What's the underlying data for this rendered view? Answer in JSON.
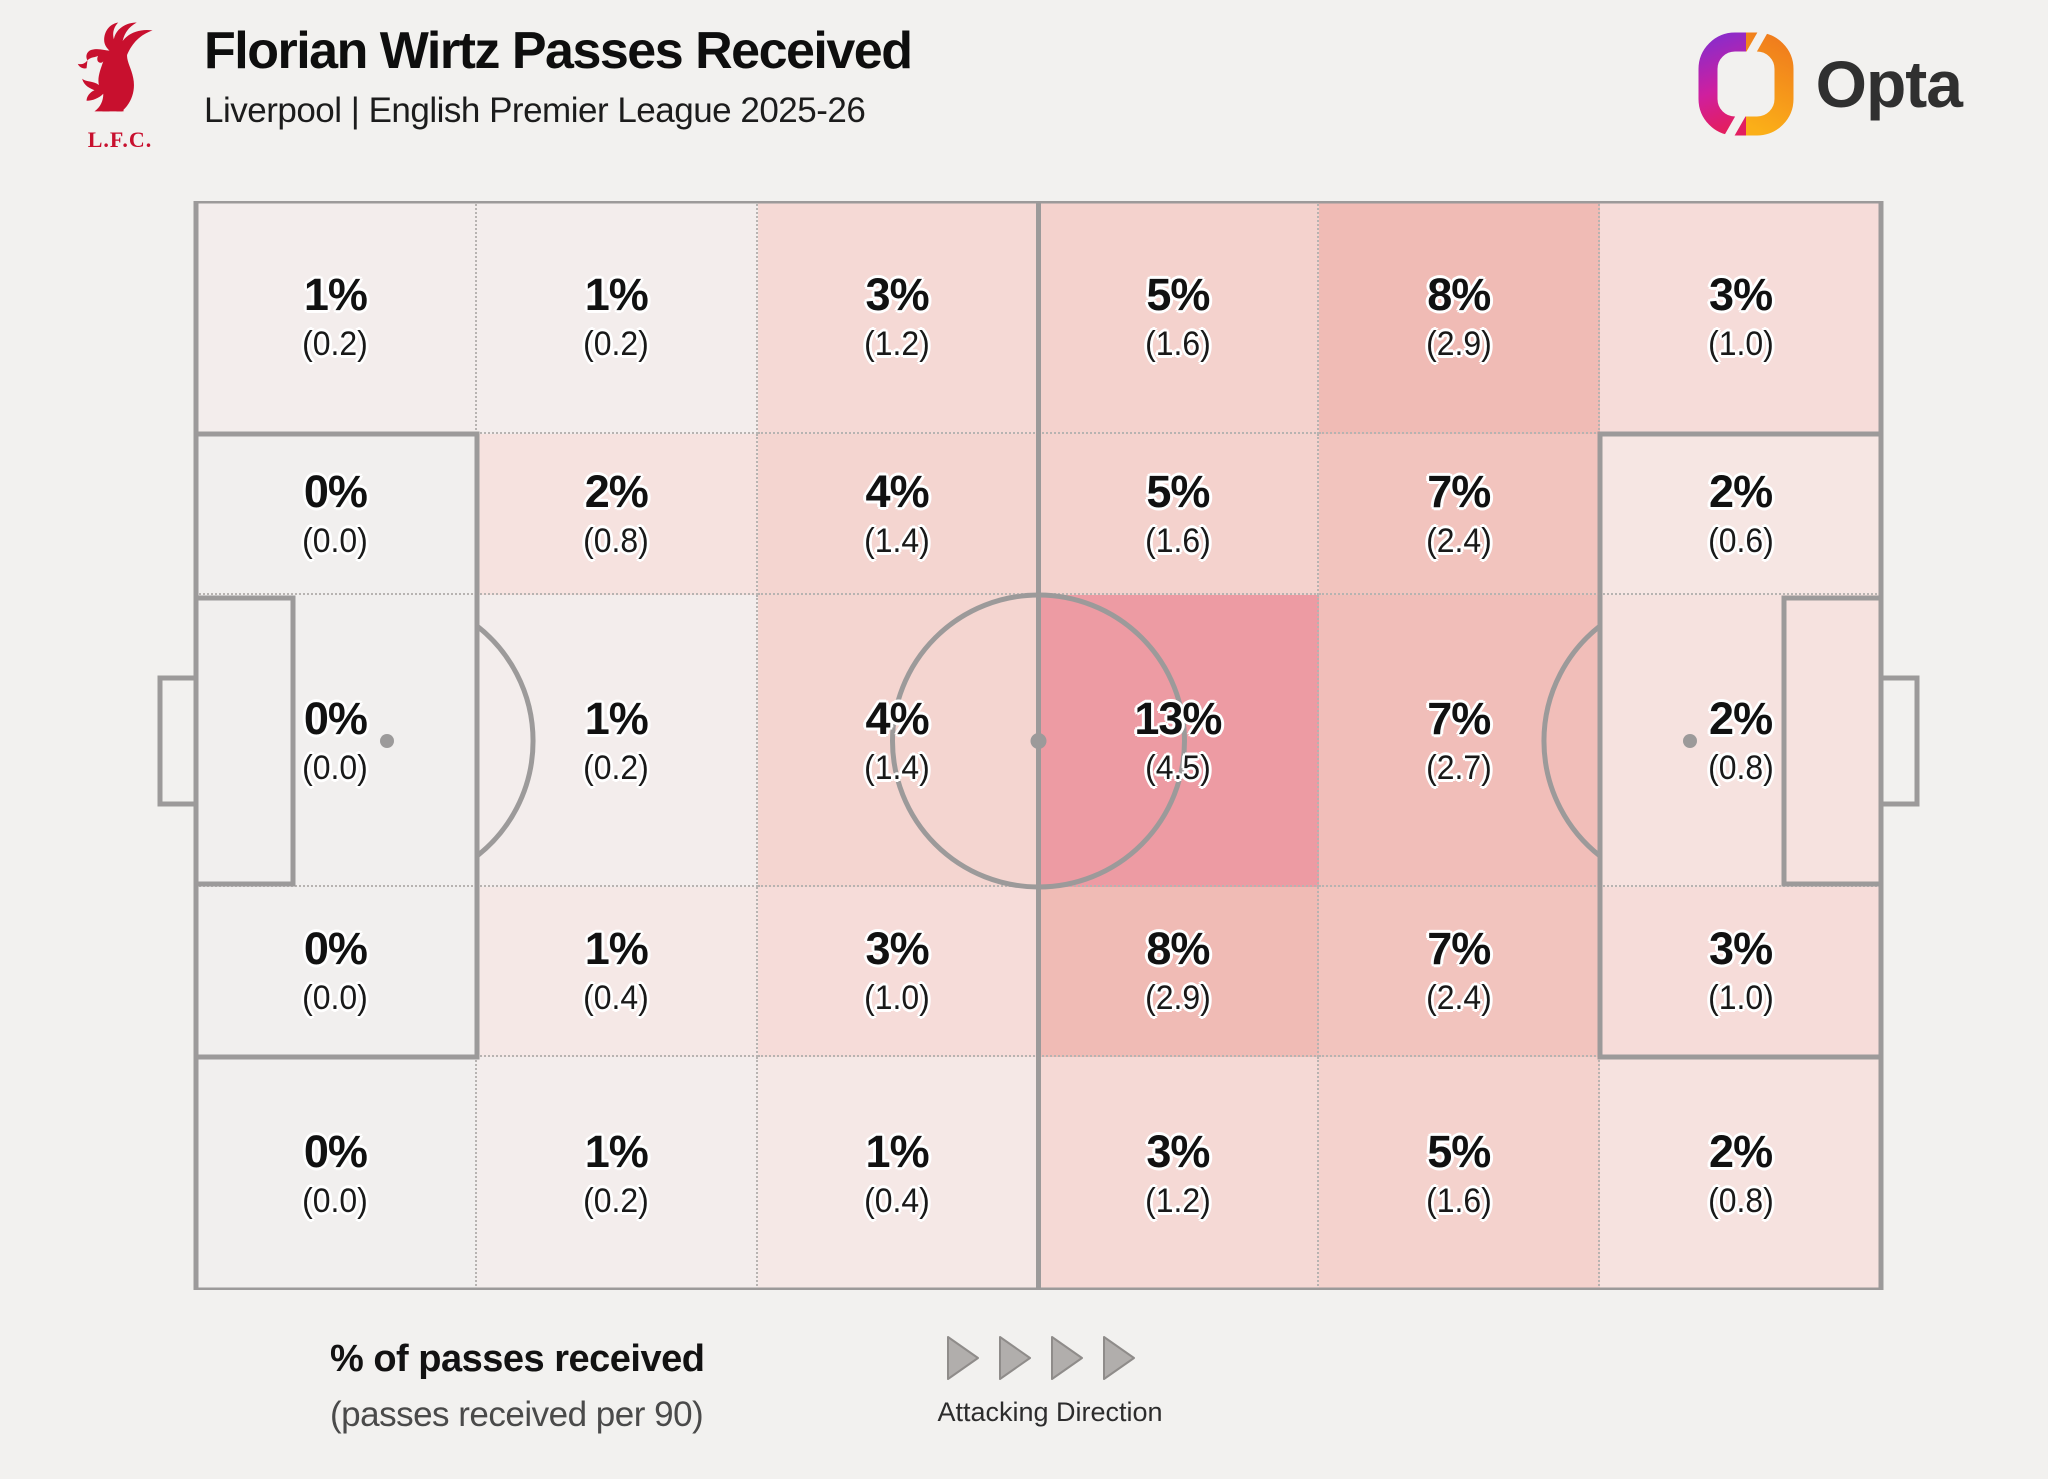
{
  "header": {
    "title": "Florian Wirtz Passes Received",
    "subtitle": "Liverpool | English Premier League 2025-26",
    "club_badge_label": "L.F.C.",
    "brand": "Opta"
  },
  "legend": {
    "primary": "% of passes received",
    "secondary": "(passes received per 90)",
    "attacking_direction": "Attacking Direction"
  },
  "colors": {
    "background": "#f2f1ef",
    "pitch_line": "#9c9a9a",
    "grid_dotted": "#b7b3b1",
    "max_zone": "#ed9ba3",
    "lfc_red": "#c8102e",
    "text": "#111111"
  },
  "chart_data": {
    "type": "heatmap",
    "title": "Florian Wirtz Passes Received",
    "subtitle": "Liverpool | English Premier League 2025-26",
    "unit_primary": "% of passes received",
    "unit_secondary": "passes received per 90",
    "orientation": "attacking left to right",
    "rows": 5,
    "cols": 6,
    "row_boundaries_fraction": [
      0,
      0.214,
      0.362,
      0.63,
      0.786,
      1
    ],
    "cells": [
      [
        {
          "label": "1%",
          "sub": "(0.2)",
          "value": 1,
          "per90": 0.2,
          "color": "#f3edec"
        },
        {
          "label": "1%",
          "sub": "(0.2)",
          "value": 1,
          "per90": 0.2,
          "color": "#f3edec"
        },
        {
          "label": "3%",
          "sub": "(1.2)",
          "value": 3,
          "per90": 1.2,
          "color": "#f5d9d5"
        },
        {
          "label": "5%",
          "sub": "(1.6)",
          "value": 5,
          "per90": 1.6,
          "color": "#f4d2cd"
        },
        {
          "label": "8%",
          "sub": "(2.9)",
          "value": 8,
          "per90": 2.9,
          "color": "#f0bbb5"
        },
        {
          "label": "3%",
          "sub": "(1.0)",
          "value": 3,
          "per90": 1.0,
          "color": "#f6dcd9"
        }
      ],
      [
        {
          "label": "0%",
          "sub": "(0.0)",
          "value": 0,
          "per90": 0.0,
          "color": "#f1efee"
        },
        {
          "label": "2%",
          "sub": "(0.8)",
          "value": 2,
          "per90": 0.8,
          "color": "#f6e2df"
        },
        {
          "label": "4%",
          "sub": "(1.4)",
          "value": 4,
          "per90": 1.4,
          "color": "#f4d5d0"
        },
        {
          "label": "5%",
          "sub": "(1.6)",
          "value": 5,
          "per90": 1.6,
          "color": "#f4d2cd"
        },
        {
          "label": "7%",
          "sub": "(2.4)",
          "value": 7,
          "per90": 2.4,
          "color": "#f2c4be"
        },
        {
          "label": "2%",
          "sub": "(0.6)",
          "value": 2,
          "per90": 0.6,
          "color": "#f6e6e3"
        }
      ],
      [
        {
          "label": "0%",
          "sub": "(0.0)",
          "value": 0,
          "per90": 0.0,
          "color": "#f1efee"
        },
        {
          "label": "1%",
          "sub": "(0.2)",
          "value": 1,
          "per90": 0.2,
          "color": "#f3edec"
        },
        {
          "label": "4%",
          "sub": "(1.4)",
          "value": 4,
          "per90": 1.4,
          "color": "#f4d5d0"
        },
        {
          "label": "13%",
          "sub": "(4.5)",
          "value": 13,
          "per90": 4.5,
          "color": "#ed9ba3"
        },
        {
          "label": "7%",
          "sub": "(2.7)",
          "value": 7,
          "per90": 2.7,
          "color": "#f1beb9"
        },
        {
          "label": "2%",
          "sub": "(0.8)",
          "value": 2,
          "per90": 0.8,
          "color": "#f6e2df"
        }
      ],
      [
        {
          "label": "0%",
          "sub": "(0.0)",
          "value": 0,
          "per90": 0.0,
          "color": "#f1efee"
        },
        {
          "label": "1%",
          "sub": "(0.4)",
          "value": 1,
          "per90": 0.4,
          "color": "#f5e8e6"
        },
        {
          "label": "3%",
          "sub": "(1.0)",
          "value": 3,
          "per90": 1.0,
          "color": "#f6dcd9"
        },
        {
          "label": "8%",
          "sub": "(2.9)",
          "value": 8,
          "per90": 2.9,
          "color": "#f0bbb5"
        },
        {
          "label": "7%",
          "sub": "(2.4)",
          "value": 7,
          "per90": 2.4,
          "color": "#f2c4be"
        },
        {
          "label": "3%",
          "sub": "(1.0)",
          "value": 3,
          "per90": 1.0,
          "color": "#f6dcd9"
        }
      ],
      [
        {
          "label": "0%",
          "sub": "(0.0)",
          "value": 0,
          "per90": 0.0,
          "color": "#f1efee"
        },
        {
          "label": "1%",
          "sub": "(0.2)",
          "value": 1,
          "per90": 0.2,
          "color": "#f3edec"
        },
        {
          "label": "1%",
          "sub": "(0.4)",
          "value": 1,
          "per90": 0.4,
          "color": "#f5e8e6"
        },
        {
          "label": "3%",
          "sub": "(1.2)",
          "value": 3,
          "per90": 1.2,
          "color": "#f5d9d5"
        },
        {
          "label": "5%",
          "sub": "(1.6)",
          "value": 5,
          "per90": 1.6,
          "color": "#f4d2cd"
        },
        {
          "label": "2%",
          "sub": "(0.8)",
          "value": 2,
          "per90": 0.8,
          "color": "#f6e2df"
        }
      ]
    ]
  }
}
